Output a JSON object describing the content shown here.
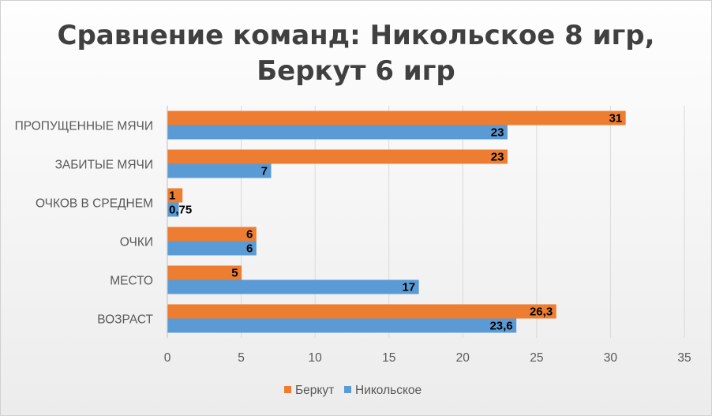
{
  "chart_data": {
    "type": "bar",
    "orientation": "horizontal",
    "title": [
      "Сравнение команд: Никольское 8 игр,",
      "Беркут 6 игр"
    ],
    "categories": [
      "ВОЗРАСТ",
      "МЕСТО",
      "ОЧКИ",
      "ОЧКОВ В СРЕДНЕМ",
      "ЗАБИТЫЕ МЯЧИ",
      "ПРОПУЩЕННЫЕ МЯЧИ"
    ],
    "series": [
      {
        "name": "Никольское",
        "color": "#5b9bd5",
        "values": [
          23.6,
          17,
          6,
          0.75,
          7,
          23
        ],
        "labels": [
          "23,6",
          "17",
          "6",
          "0,75",
          "7",
          "23"
        ]
      },
      {
        "name": "Беркут",
        "color": "#ed7d31",
        "values": [
          26.3,
          5,
          6,
          1,
          23,
          31
        ],
        "labels": [
          "26,3",
          "5",
          "6",
          "1",
          "23",
          "31"
        ]
      }
    ],
    "xlim": [
      0,
      35
    ],
    "xticks": [
      "0",
      "5",
      "10",
      "15",
      "20",
      "25",
      "30",
      "35"
    ],
    "grid": true,
    "legend_position": "bottom",
    "legend_order": [
      "Беркут",
      "Никольское"
    ]
  }
}
